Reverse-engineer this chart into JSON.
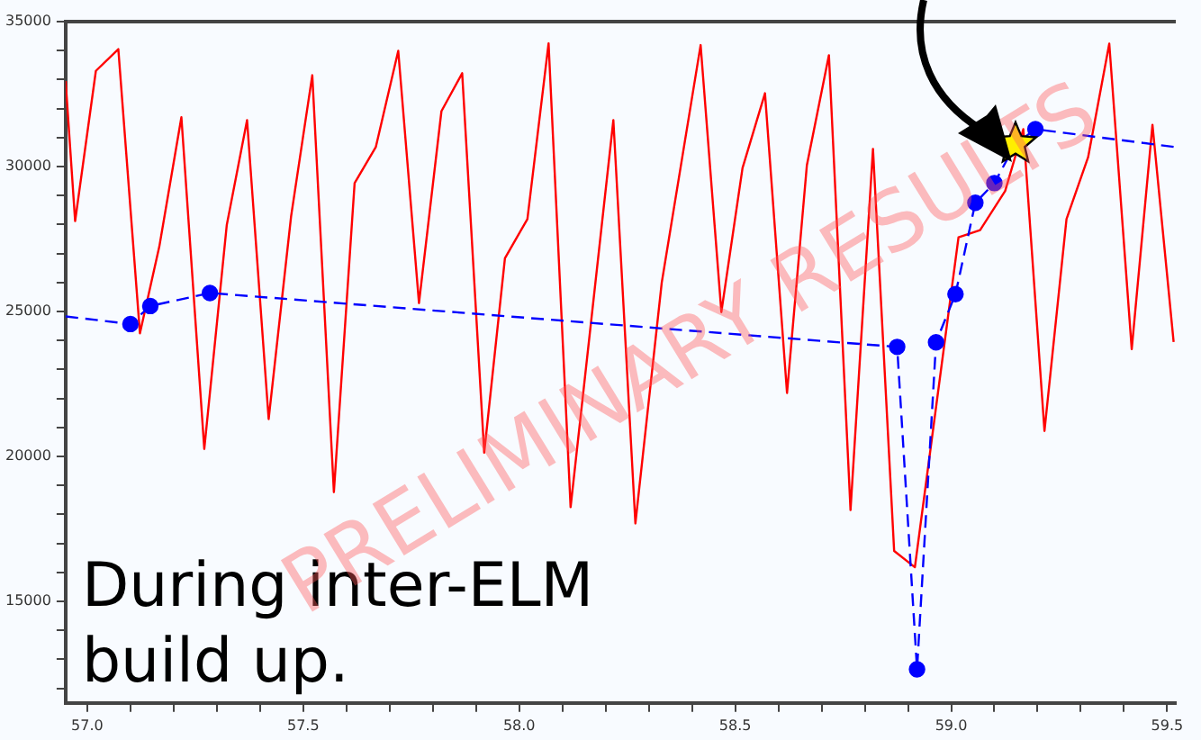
{
  "chart_data": {
    "type": "line",
    "xlim": [
      56.95,
      59.52
    ],
    "ylim": [
      11500,
      35000
    ],
    "xticks": [
      {
        "value": 57.0,
        "label": "57.0"
      },
      {
        "value": 57.1,
        "label": null
      },
      {
        "value": 57.2,
        "label": null
      },
      {
        "value": 57.3,
        "label": null
      },
      {
        "value": 57.4,
        "label": null
      },
      {
        "value": 57.5,
        "label": "57.5"
      },
      {
        "value": 57.6,
        "label": null
      },
      {
        "value": 57.7,
        "label": null
      },
      {
        "value": 57.8,
        "label": null
      },
      {
        "value": 57.9,
        "label": null
      },
      {
        "value": 58.0,
        "label": "58.0"
      },
      {
        "value": 58.1,
        "label": null
      },
      {
        "value": 58.2,
        "label": null
      },
      {
        "value": 58.3,
        "label": null
      },
      {
        "value": 58.4,
        "label": null
      },
      {
        "value": 58.5,
        "label": "58.5"
      },
      {
        "value": 58.6,
        "label": null
      },
      {
        "value": 58.7,
        "label": null
      },
      {
        "value": 58.8,
        "label": null
      },
      {
        "value": 58.9,
        "label": null
      },
      {
        "value": 59.0,
        "label": "59.0"
      },
      {
        "value": 59.1,
        "label": null
      },
      {
        "value": 59.2,
        "label": null
      },
      {
        "value": 59.3,
        "label": null
      },
      {
        "value": 59.4,
        "label": null
      },
      {
        "value": 59.5,
        "label": "59.5"
      }
    ],
    "yticks": [
      {
        "value": 12000,
        "label": null
      },
      {
        "value": 13000,
        "label": null
      },
      {
        "value": 14000,
        "label": null
      },
      15000,
      {
        "value": 16000,
        "label": null
      },
      {
        "value": 17000,
        "label": null
      },
      {
        "value": 18000,
        "label": null
      },
      {
        "value": 19000,
        "label": null
      },
      20000,
      {
        "value": 21000,
        "label": null
      },
      {
        "value": 22000,
        "label": null
      },
      {
        "value": 23000,
        "label": null
      },
      {
        "value": 24000,
        "label": null
      },
      25000,
      {
        "value": 26000,
        "label": null
      },
      {
        "value": 27000,
        "label": null
      },
      {
        "value": 28000,
        "label": null
      },
      {
        "value": 29000,
        "label": null
      },
      30000,
      {
        "value": 31000,
        "label": null
      },
      {
        "value": 32000,
        "label": null
      },
      {
        "value": 33000,
        "label": null
      },
      {
        "value": 34000,
        "label": null
      },
      35000
    ],
    "grid": false,
    "legend": false,
    "annotations": [
      "During inter-ELM build up.",
      "PRELIMINARY RESULTS"
    ],
    "series": [
      {
        "color": "#ff0000",
        "marker": "none",
        "line_style": "solid",
        "x": [
          56.95,
          56.972,
          57.02,
          57.072,
          57.122,
          57.167,
          57.218,
          57.271,
          57.323,
          57.37,
          57.42,
          57.472,
          57.521,
          57.571,
          57.619,
          57.668,
          57.72,
          57.768,
          57.82,
          57.868,
          57.919,
          57.967,
          58.019,
          58.068,
          58.119,
          58.218,
          58.269,
          58.33,
          58.42,
          58.468,
          58.517,
          58.569,
          58.62,
          58.666,
          58.717,
          58.767,
          58.819,
          58.868,
          58.916,
          59.017,
          59.067,
          59.125,
          59.167,
          59.216,
          59.267,
          59.317,
          59.366,
          59.418,
          59.466,
          59.515
        ],
        "values": [
          32950,
          28120,
          33300,
          34050,
          24250,
          27250,
          31700,
          20260,
          27980,
          31600,
          21290,
          28290,
          33150,
          18770,
          29430,
          30670,
          33990,
          25290,
          31910,
          33220,
          20130,
          26840,
          28190,
          34250,
          18250,
          31600,
          17690,
          26000,
          34190,
          24980,
          29950,
          32530,
          22190,
          30050,
          33840,
          18150,
          30610,
          16740,
          16180,
          27560,
          27810,
          29160,
          31290,
          20880,
          28190,
          30320,
          34240,
          23700,
          31440,
          23950
        ]
      },
      {
        "color": "#0000ff",
        "marker": "circle",
        "line_style": "dashed",
        "x": [
          56.95,
          57.1,
          57.146,
          57.284,
          58.875,
          58.921,
          58.965,
          59.01,
          59.056,
          59.1,
          59.149,
          59.195,
          59.52
        ],
        "values": [
          24830,
          24570,
          25190,
          25640,
          23780,
          12660,
          23940,
          25600,
          28750,
          29430,
          30780,
          31290,
          30670
        ]
      },
      {
        "type": "scatter",
        "color": "#ffee00",
        "marker": "star",
        "x": [
          59.149
        ],
        "values": [
          30780
        ]
      }
    ]
  }
}
